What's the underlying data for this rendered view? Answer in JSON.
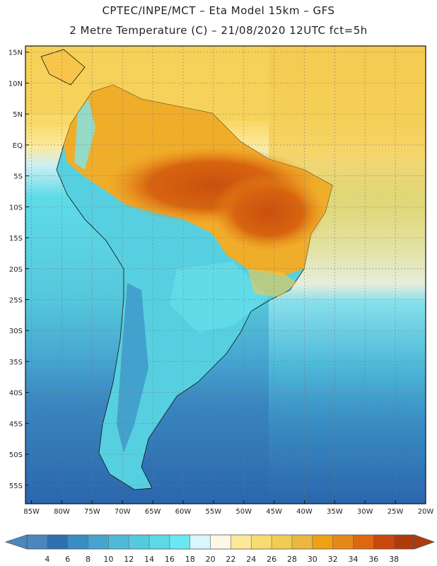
{
  "header": {
    "title_line1": "CPTEC/INPE/MCT –  Eta Model 15km – GFS",
    "title_line2": "2 Metre Temperature (C) – 21/08/2020 12UTC fct=5h"
  },
  "map": {
    "lat_labels": [
      "15N",
      "10N",
      "5N",
      "EQ",
      "5S",
      "10S",
      "15S",
      "20S",
      "25S",
      "30S",
      "35S",
      "40S",
      "45S",
      "50S",
      "55S"
    ],
    "lon_labels": [
      "85W",
      "80W",
      "75W",
      "70W",
      "65W",
      "60W",
      "55W",
      "50W",
      "45W",
      "40W",
      "35W",
      "30W",
      "25W",
      "20W"
    ],
    "lat_values": [
      15,
      10,
      5,
      0,
      -5,
      -10,
      -15,
      -20,
      -25,
      -30,
      -35,
      -40,
      -45,
      -50,
      -55
    ],
    "lon_values": [
      -85,
      -80,
      -75,
      -70,
      -65,
      -60,
      -55,
      -50,
      -45,
      -40,
      -35,
      -30,
      -25,
      -20
    ],
    "extent": {
      "lon_min": -86,
      "lon_max": -20,
      "lat_min": -58,
      "lat_max": 16
    }
  },
  "colorbar": {
    "labels": [
      "4",
      "6",
      "8",
      "10",
      "12",
      "14",
      "16",
      "18",
      "20",
      "22",
      "24",
      "26",
      "28",
      "30",
      "32",
      "34",
      "36",
      "38"
    ],
    "colors": [
      "#4a86c0",
      "#2e6fb0",
      "#3a8cc4",
      "#45a4d0",
      "#4fbad8",
      "#55cadf",
      "#5dd8e6",
      "#6ae8f0",
      "#d8f6fb",
      "#fff7e6",
      "#fde89a",
      "#f8dc72",
      "#f1cc55",
      "#eab841",
      "#f0a015",
      "#e68818",
      "#de6811",
      "#c9470b",
      "#b03a0c"
    ]
  }
}
